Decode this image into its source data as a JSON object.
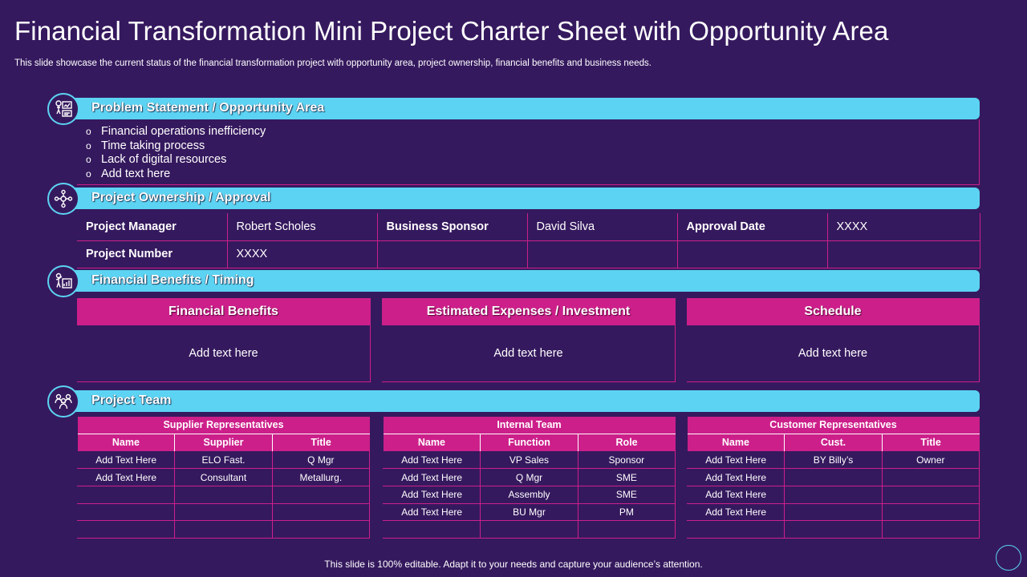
{
  "title": "Financial Transformation Mini Project Charter Sheet with Opportunity Area",
  "subtitle": "This slide showcase the current status of the financial transformation project with opportunity area, project ownership, financial benefits and business needs.",
  "sections": {
    "problem": {
      "label": "Problem Statement / Opportunity Area",
      "icon": "problem-board-icon"
    },
    "ownership": {
      "label": "Project Ownership / Approval",
      "icon": "ownership-network-icon"
    },
    "benefits": {
      "label": "Financial Benefits / Timing",
      "icon": "benefits-chart-icon"
    },
    "team": {
      "label": "Project Team",
      "icon": "team-people-icon"
    }
  },
  "problem_items": [
    {
      "bullet": "o",
      "text": "Financial operations inefficiency"
    },
    {
      "bullet": "o",
      "text": "Time taking process"
    },
    {
      "bullet": "o",
      "text": "Lack of digital resources"
    },
    {
      "bullet": "o",
      "text": "Add text here"
    }
  ],
  "ownership": {
    "row1": [
      "Project Manager",
      "Robert Scholes",
      "Business Sponsor",
      "David Silva",
      "Approval Date",
      "XXXX"
    ],
    "row2": [
      "Project Number",
      "XXXX",
      "",
      "",
      "",
      ""
    ]
  },
  "benefits": [
    {
      "header": "Financial Benefits",
      "body": "Add text here"
    },
    {
      "header": "Estimated Expenses / Investment",
      "body": "Add text here"
    },
    {
      "header": "Schedule",
      "body": "Add text here"
    }
  ],
  "team": {
    "supplier": {
      "group": "Supplier Representatives",
      "columns": [
        "Name",
        "Supplier",
        "Title"
      ],
      "rows": [
        [
          "Add Text Here",
          "ELO Fast.",
          "Q Mgr"
        ],
        [
          "Add Text Here",
          "Consultant",
          "Metallurg."
        ],
        [
          "",
          "",
          ""
        ],
        [
          "",
          "",
          ""
        ],
        [
          "",
          "",
          ""
        ]
      ]
    },
    "internal": {
      "group": "Internal Team",
      "columns": [
        "Name",
        "Function",
        "Role"
      ],
      "rows": [
        [
          "Add Text Here",
          "VP Sales",
          "Sponsor"
        ],
        [
          "Add Text Here",
          "Q Mgr",
          "SME"
        ],
        [
          "Add Text Here",
          "Assembly",
          "SME"
        ],
        [
          "Add Text Here",
          "BU Mgr",
          "PM"
        ],
        [
          "",
          "",
          ""
        ]
      ]
    },
    "customer": {
      "group": "Customer Representatives",
      "columns": [
        "Name",
        "Cust.",
        "Title"
      ],
      "rows": [
        [
          "Add Text Here",
          "BY Billy’s",
          "Owner"
        ],
        [
          "Add Text Here",
          "",
          ""
        ],
        [
          "Add Text Here",
          "",
          ""
        ],
        [
          "Add Text Here",
          "",
          ""
        ],
        [
          "",
          "",
          ""
        ]
      ]
    }
  },
  "footer": "This slide is 100% editable. Adapt it to your needs and capture your audience’s attention.",
  "colors": {
    "background": "#35195e",
    "bar": "#5cd3f2",
    "accent": "#cc1f8a",
    "text": "#ffffff"
  }
}
